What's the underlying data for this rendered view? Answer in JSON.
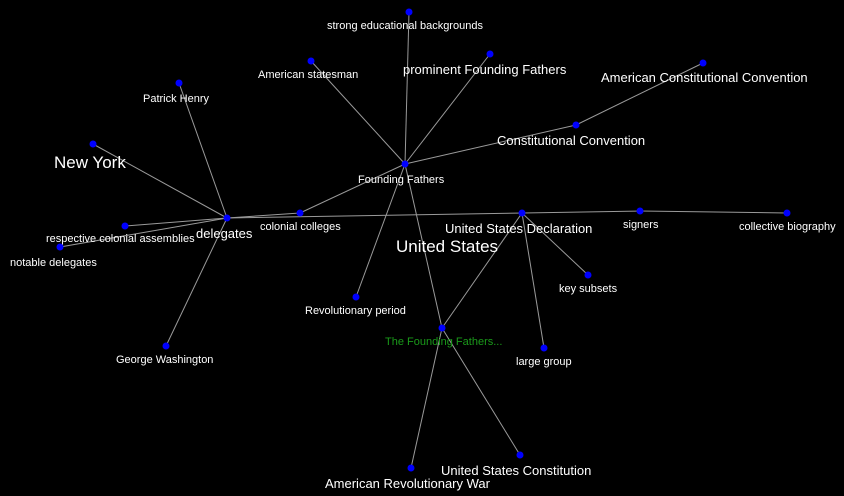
{
  "graph": {
    "background": "#000000",
    "node_color": "#0000ff",
    "edge_color": "#9a9a9a",
    "root_label_color": "#1a9a1a",
    "nodes": {
      "root": "The Founding Fathers...",
      "founding_fathers": "Founding Fathers",
      "strong_educational_backgrounds": "strong educational backgrounds",
      "american_statesman": "American statesman",
      "prominent_founding_fathers": "prominent Founding Fathers",
      "american_constitutional_convention": "American Constitutional Convention",
      "constitutional_convention": "Constitutional Convention",
      "patrick_henry": "Patrick Henry",
      "new_york": "New York",
      "delegates": "delegates",
      "respective_colonial_assemblies": "respective colonial assemblies",
      "notable_delegates": "notable delegates",
      "colonial_colleges": "colonial colleges",
      "united_states_declaration": "United States Declaration",
      "united_states": "United States",
      "signers": "signers",
      "collective_biography": "collective biography",
      "key_subsets": "key subsets",
      "revolutionary_period": "Revolutionary period",
      "george_washington": "George Washington",
      "large_group": "large group",
      "united_states_constitution": "United States Constitution",
      "american_revolutionary_war": "American Revolutionary War"
    },
    "edges": [
      [
        "root",
        "founding_fathers"
      ],
      [
        "root",
        "united_states_declaration"
      ],
      [
        "root",
        "american_revolutionary_war"
      ],
      [
        "root",
        "united_states_constitution"
      ],
      [
        "founding_fathers",
        "strong_educational_backgrounds"
      ],
      [
        "founding_fathers",
        "american_statesman"
      ],
      [
        "founding_fathers",
        "prominent_founding_fathers"
      ],
      [
        "founding_fathers",
        "constitutional_convention"
      ],
      [
        "founding_fathers",
        "colonial_colleges"
      ],
      [
        "founding_fathers",
        "revolutionary_period"
      ],
      [
        "constitutional_convention",
        "american_constitutional_convention"
      ],
      [
        "delegates",
        "patrick_henry"
      ],
      [
        "delegates",
        "new_york"
      ],
      [
        "delegates",
        "respective_colonial_assemblies"
      ],
      [
        "delegates",
        "notable_delegates"
      ],
      [
        "delegates",
        "george_washington"
      ],
      [
        "delegates",
        "colonial_colleges"
      ],
      [
        "delegates",
        "signers"
      ],
      [
        "signers",
        "collective_biography"
      ],
      [
        "united_states_declaration",
        "key_subsets"
      ],
      [
        "united_states_declaration",
        "large_group"
      ]
    ]
  }
}
